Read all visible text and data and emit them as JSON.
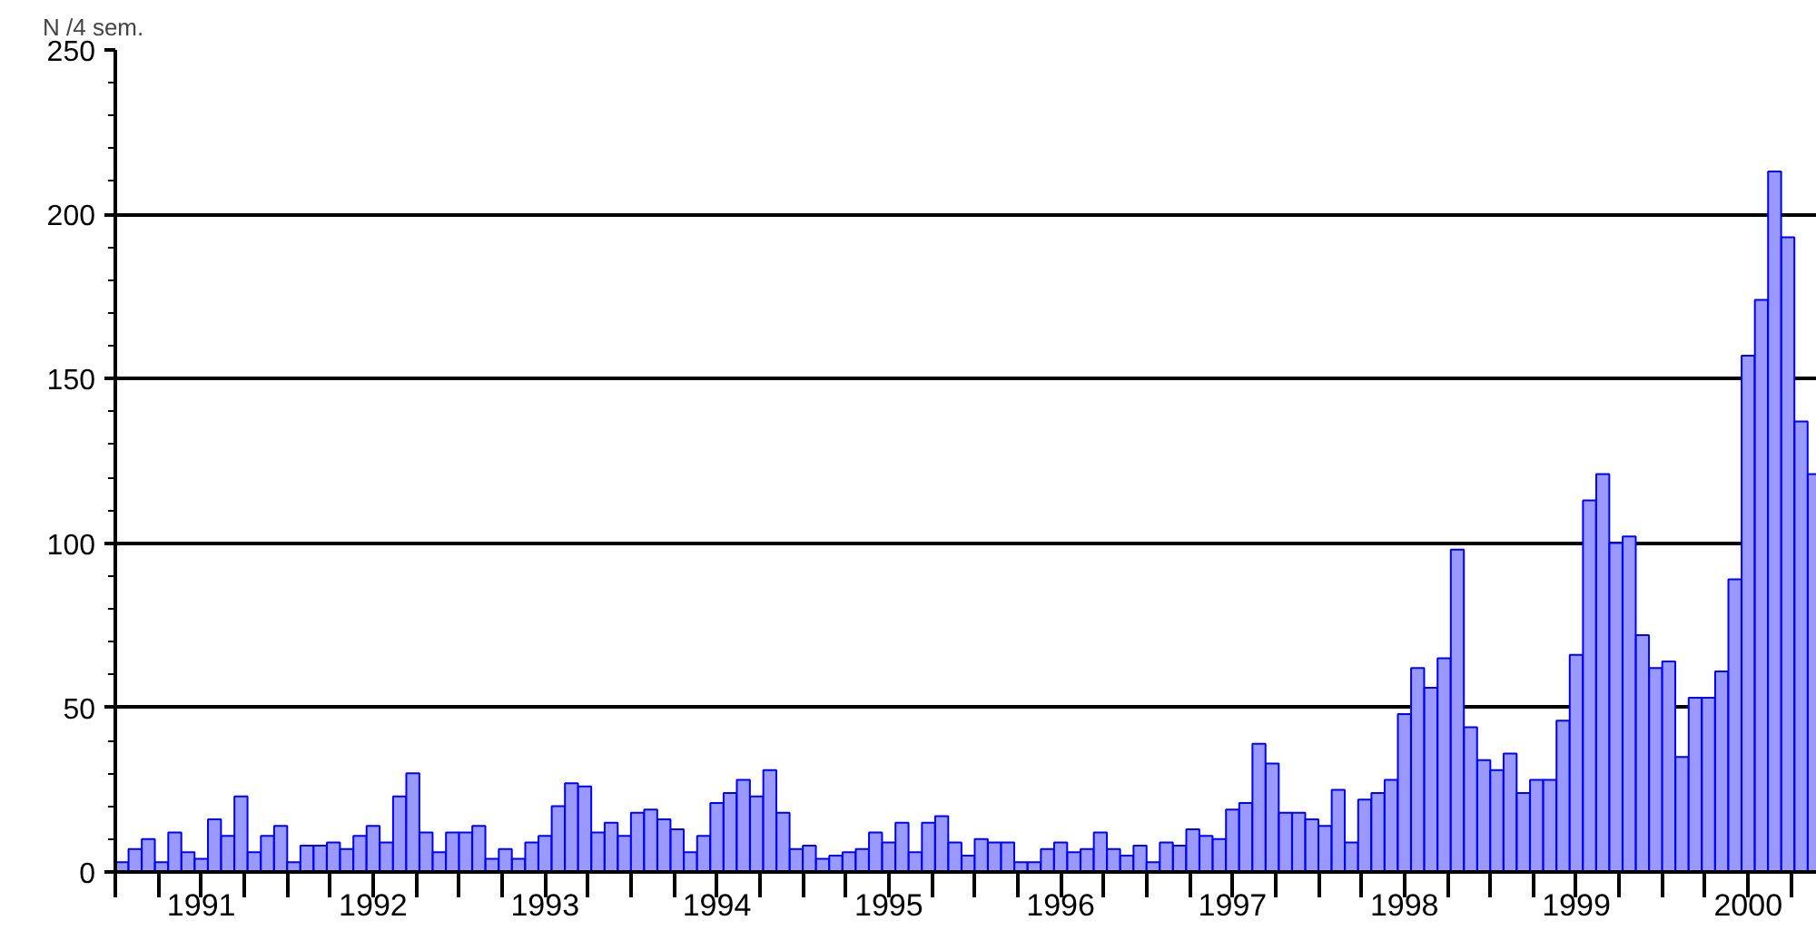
{
  "chart_data": {
    "type": "bar",
    "ylabel": "N /4 sem.",
    "x": [
      1991.038,
      1991.115,
      1991.192,
      1991.269,
      1991.346,
      1991.423,
      1991.5,
      1991.577,
      1991.654,
      1991.731,
      1991.808,
      1991.885,
      1991.962,
      1992.038,
      1992.115,
      1992.192,
      1992.269,
      1992.346,
      1992.423,
      1992.5,
      1992.577,
      1992.654,
      1992.731,
      1992.808,
      1992.885,
      1992.962,
      1993.038,
      1993.115,
      1993.192,
      1993.269,
      1993.346,
      1993.423,
      1993.5,
      1993.577,
      1993.654,
      1993.731,
      1993.808,
      1993.885,
      1993.962,
      1994.038,
      1994.115,
      1994.192,
      1994.269,
      1994.346,
      1994.423,
      1994.5,
      1994.577,
      1994.654,
      1994.731,
      1994.808,
      1994.885,
      1994.962,
      1995.038,
      1995.115,
      1995.192,
      1995.269,
      1995.346,
      1995.423,
      1995.5,
      1995.577,
      1995.654,
      1995.731,
      1995.808,
      1995.885,
      1995.962,
      1996.038,
      1996.115,
      1996.192,
      1996.269,
      1996.346,
      1996.423,
      1996.5,
      1996.577,
      1996.654,
      1996.731,
      1996.808,
      1996.885,
      1996.962,
      1997.038,
      1997.115,
      1997.192,
      1997.269,
      1997.346,
      1997.423,
      1997.5,
      1997.577,
      1997.654,
      1997.731,
      1997.808,
      1997.885,
      1997.962,
      1998.038,
      1998.115,
      1998.192,
      1998.269,
      1998.346,
      1998.423,
      1998.5,
      1998.577,
      1998.654,
      1998.731,
      1998.808,
      1998.885,
      1998.962,
      1999.038,
      1999.115,
      1999.192,
      1999.269,
      1999.346,
      1999.423,
      1999.5,
      1999.577,
      1999.654,
      1999.731,
      1999.808,
      1999.885,
      1999.962,
      2000.038,
      2000.115,
      2000.192,
      2000.269,
      2000.346,
      2000.423,
      2000.5,
      2000.577,
      2000.654,
      2000.731,
      2000.808,
      2000.885
    ],
    "values": [
      3,
      7,
      10,
      3,
      12,
      6,
      4,
      16,
      11,
      23,
      6,
      11,
      14,
      3,
      8,
      8,
      9,
      7,
      11,
      14,
      9,
      23,
      30,
      12,
      6,
      12,
      12,
      14,
      4,
      7,
      4,
      9,
      11,
      20,
      27,
      26,
      12,
      15,
      11,
      18,
      19,
      16,
      13,
      6,
      11,
      21,
      24,
      28,
      23,
      31,
      18,
      7,
      8,
      4,
      5,
      6,
      7,
      12,
      9,
      15,
      6,
      15,
      17,
      9,
      5,
      10,
      9,
      9,
      3,
      3,
      7,
      9,
      6,
      7,
      12,
      7,
      5,
      8,
      3,
      9,
      8,
      13,
      11,
      10,
      19,
      21,
      39,
      33,
      18,
      18,
      16,
      14,
      25,
      9,
      22,
      24,
      28,
      48,
      62,
      56,
      65,
      98,
      44,
      34,
      31,
      36,
      24,
      28,
      28,
      46,
      66,
      113,
      121,
      100,
      102,
      72,
      62,
      64,
      35,
      53,
      53,
      61,
      89,
      157,
      174,
      213,
      193,
      137,
      121
    ],
    "color": "#9999ff",
    "xlim": [
      1991,
      2000.9
    ],
    "xticks": [
      {
        "value": 1991,
        "label": null
      },
      {
        "value": 1991.25,
        "label": null
      },
      {
        "value": 1991.5,
        "label": "1991"
      },
      {
        "value": 1991.75,
        "label": null
      },
      {
        "value": 1992,
        "label": null
      },
      {
        "value": 1992.25,
        "label": null
      },
      {
        "value": 1992.5,
        "label": "1992"
      },
      {
        "value": 1992.75,
        "label": null
      },
      {
        "value": 1993,
        "label": null
      },
      {
        "value": 1993.25,
        "label": null
      },
      {
        "value": 1993.5,
        "label": "1993"
      },
      {
        "value": 1993.75,
        "label": null
      },
      {
        "value": 1994,
        "label": null
      },
      {
        "value": 1994.25,
        "label": null
      },
      {
        "value": 1994.5,
        "label": "1994"
      },
      {
        "value": 1994.75,
        "label": null
      },
      {
        "value": 1995,
        "label": null
      },
      {
        "value": 1995.25,
        "label": null
      },
      {
        "value": 1995.5,
        "label": "1995"
      },
      {
        "value": 1995.75,
        "label": null
      },
      {
        "value": 1996,
        "label": null
      },
      {
        "value": 1996.25,
        "label": null
      },
      {
        "value": 1996.5,
        "label": "1996"
      },
      {
        "value": 1996.75,
        "label": null
      },
      {
        "value": 1997,
        "label": null
      },
      {
        "value": 1997.25,
        "label": null
      },
      {
        "value": 1997.5,
        "label": "1997"
      },
      {
        "value": 1997.75,
        "label": null
      },
      {
        "value": 1998,
        "label": null
      },
      {
        "value": 1998.25,
        "label": null
      },
      {
        "value": 1998.5,
        "label": "1998"
      },
      {
        "value": 1998.75,
        "label": null
      },
      {
        "value": 1999,
        "label": null
      },
      {
        "value": 1999.25,
        "label": null
      },
      {
        "value": 1999.5,
        "label": "1999"
      },
      {
        "value": 1999.75,
        "label": null
      },
      {
        "value": 2000,
        "label": null
      },
      {
        "value": 2000.25,
        "label": null
      },
      {
        "value": 2000.5,
        "label": "2000"
      },
      {
        "value": 2000.75,
        "label": null
      }
    ],
    "ylim": [
      0,
      250
    ],
    "yticks": [
      0,
      50,
      100,
      150,
      200,
      250
    ],
    "grid": "y"
  }
}
